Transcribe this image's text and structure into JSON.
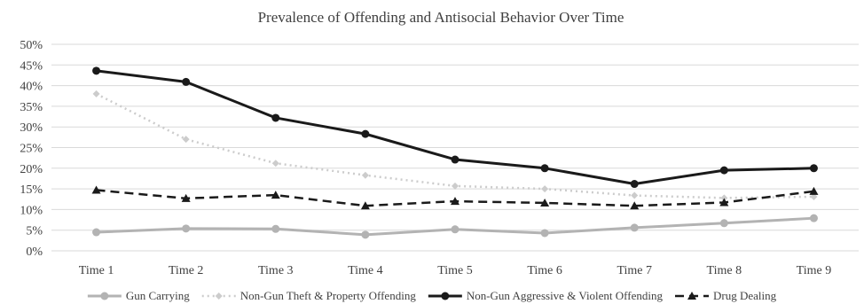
{
  "chart_data": {
    "type": "line",
    "title": "Prevalence of Offending and Antisocial Behavior Over Time",
    "categories": [
      "Time 1",
      "Time 2",
      "Time 3",
      "Time 4",
      "Time 5",
      "Time 6",
      "Time 7",
      "Time 8",
      "Time 9"
    ],
    "y_tick_labels": [
      "0%",
      "5%",
      "10%",
      "15%",
      "20%",
      "25%",
      "30%",
      "35%",
      "40%",
      "45%",
      "50%"
    ],
    "ylim": [
      0,
      50
    ],
    "grid": true,
    "legend_position": "bottom",
    "series": [
      {
        "name": "Gun Carrying",
        "color": "#b3b3b3",
        "line_style": "solid",
        "marker": "circle",
        "values": [
          4.5,
          5.4,
          5.3,
          3.9,
          5.2,
          4.3,
          5.6,
          6.7,
          7.9
        ]
      },
      {
        "name": "Non-Gun Theft & Property Offending",
        "color": "#cccccc",
        "line_style": "dotted",
        "marker": "diamond",
        "values": [
          38.0,
          27.0,
          21.2,
          18.3,
          15.7,
          15.0,
          13.4,
          12.8,
          13.1
        ]
      },
      {
        "name": "Non-Gun Aggressive & Violent Offending",
        "color": "#1a1a1a",
        "line_style": "solid",
        "marker": "circle",
        "values": [
          43.6,
          40.9,
          32.2,
          28.3,
          22.1,
          20.0,
          16.2,
          19.5,
          20.0
        ]
      },
      {
        "name": "Drug Dealing",
        "color": "#1a1a1a",
        "line_style": "dashed",
        "marker": "triangle",
        "values": [
          14.7,
          12.7,
          13.5,
          10.9,
          12.0,
          11.6,
          10.9,
          11.7,
          14.4
        ]
      }
    ]
  }
}
